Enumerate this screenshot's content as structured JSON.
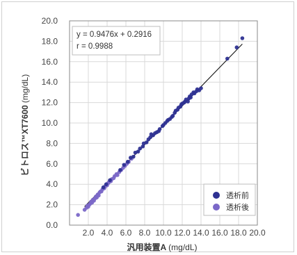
{
  "chart_data": {
    "type": "scatter",
    "xlabel_prefix": "汎用装置A",
    "xlabel_unit": "(mg/dL)",
    "ylabel_prefix": "ビトロス™XT7600",
    "ylabel_unit": "(mg/dL)",
    "xlim": [
      0,
      20
    ],
    "ylim": [
      0,
      20
    ],
    "x_ticks": [
      "",
      "2.0",
      "4.0",
      "6.0",
      "8.0",
      "10.0",
      "12.0",
      "14.0",
      "16.0",
      "18.0",
      "20.0"
    ],
    "y_ticks": [
      "0.0",
      "2.0",
      "4.0",
      "6.0",
      "8.0",
      "10.0",
      "12.0",
      "14.0",
      "16.0",
      "18.0",
      "20.0"
    ],
    "grid": true,
    "legend_position": "bottom-right",
    "annotation": {
      "equation": "y = 0.9476x + 0.2916",
      "r": "r = 0.9988"
    },
    "regression": {
      "slope": 0.9476,
      "intercept": 0.2916,
      "x_range": [
        1.6,
        18.4
      ]
    },
    "colors": {
      "pre": "#2e3192",
      "post": "#7b68c8",
      "line": "#111111"
    },
    "series": [
      {
        "name": "透析前",
        "color": "#2e3192",
        "points": [
          [
            3.6,
            3.7
          ],
          [
            3.9,
            4.0
          ],
          [
            4.3,
            4.4
          ],
          [
            5.4,
            5.4
          ],
          [
            5.8,
            5.9
          ],
          [
            6.2,
            6.2
          ],
          [
            6.5,
            6.6
          ],
          [
            6.8,
            6.7
          ],
          [
            7.0,
            7.1
          ],
          [
            7.3,
            7.2
          ],
          [
            7.5,
            7.5
          ],
          [
            7.8,
            7.7
          ],
          [
            7.9,
            8.0
          ],
          [
            8.2,
            8.1
          ],
          [
            8.4,
            8.4
          ],
          [
            8.6,
            8.6
          ],
          [
            8.7,
            8.9
          ],
          [
            8.9,
            8.8
          ],
          [
            9.1,
            9.0
          ],
          [
            9.3,
            9.1
          ],
          [
            9.5,
            9.2
          ],
          [
            9.6,
            9.4
          ],
          [
            9.9,
            9.7
          ],
          [
            10.0,
            9.8
          ],
          [
            10.2,
            10.0
          ],
          [
            10.4,
            10.2
          ],
          [
            10.5,
            10.3
          ],
          [
            10.7,
            10.4
          ],
          [
            10.9,
            10.6
          ],
          [
            11.0,
            10.7
          ],
          [
            11.2,
            11.0
          ],
          [
            11.3,
            11.2
          ],
          [
            11.5,
            11.3
          ],
          [
            11.6,
            11.5
          ],
          [
            11.8,
            11.6
          ],
          [
            11.9,
            11.8
          ],
          [
            12.0,
            11.9
          ],
          [
            12.2,
            12.0
          ],
          [
            12.3,
            12.1
          ],
          [
            12.4,
            12.3
          ],
          [
            12.6,
            12.1
          ],
          [
            12.7,
            12.4
          ],
          [
            12.8,
            12.6
          ],
          [
            12.9,
            12.5
          ],
          [
            13.0,
            12.8
          ],
          [
            13.2,
            13.0
          ],
          [
            13.3,
            12.9
          ],
          [
            13.5,
            13.1
          ],
          [
            13.6,
            13.3
          ],
          [
            13.8,
            13.2
          ],
          [
            14.0,
            13.4
          ],
          [
            16.8,
            16.3
          ],
          [
            17.8,
            17.4
          ],
          [
            18.4,
            18.3
          ]
        ]
      },
      {
        "name": "透析後",
        "color": "#7b68c8",
        "points": [
          [
            0.9,
            1.0
          ],
          [
            1.6,
            1.5
          ],
          [
            1.8,
            1.7
          ],
          [
            1.9,
            1.9
          ],
          [
            2.0,
            1.8
          ],
          [
            2.1,
            2.0
          ],
          [
            2.2,
            2.1
          ],
          [
            2.3,
            2.3
          ],
          [
            2.4,
            2.2
          ],
          [
            2.5,
            2.5
          ],
          [
            2.6,
            2.4
          ],
          [
            2.7,
            2.6
          ],
          [
            2.8,
            2.8
          ],
          [
            2.9,
            2.7
          ],
          [
            3.0,
            3.0
          ],
          [
            3.1,
            2.9
          ],
          [
            3.2,
            3.2
          ],
          [
            3.3,
            3.3
          ],
          [
            3.4,
            3.3
          ],
          [
            3.5,
            3.5
          ],
          [
            3.7,
            3.6
          ],
          [
            3.8,
            3.8
          ],
          [
            4.0,
            3.9
          ],
          [
            4.1,
            4.1
          ],
          [
            4.2,
            4.2
          ],
          [
            4.4,
            4.3
          ],
          [
            4.5,
            4.5
          ],
          [
            4.7,
            4.6
          ],
          [
            4.8,
            4.8
          ],
          [
            5.0,
            5.0
          ],
          [
            5.1,
            4.9
          ],
          [
            5.3,
            5.2
          ],
          [
            5.5,
            5.4
          ],
          [
            5.7,
            5.6
          ],
          [
            5.9,
            5.8
          ],
          [
            6.1,
            6.0
          ],
          [
            6.3,
            6.2
          ],
          [
            6.6,
            6.5
          ]
        ]
      }
    ]
  }
}
